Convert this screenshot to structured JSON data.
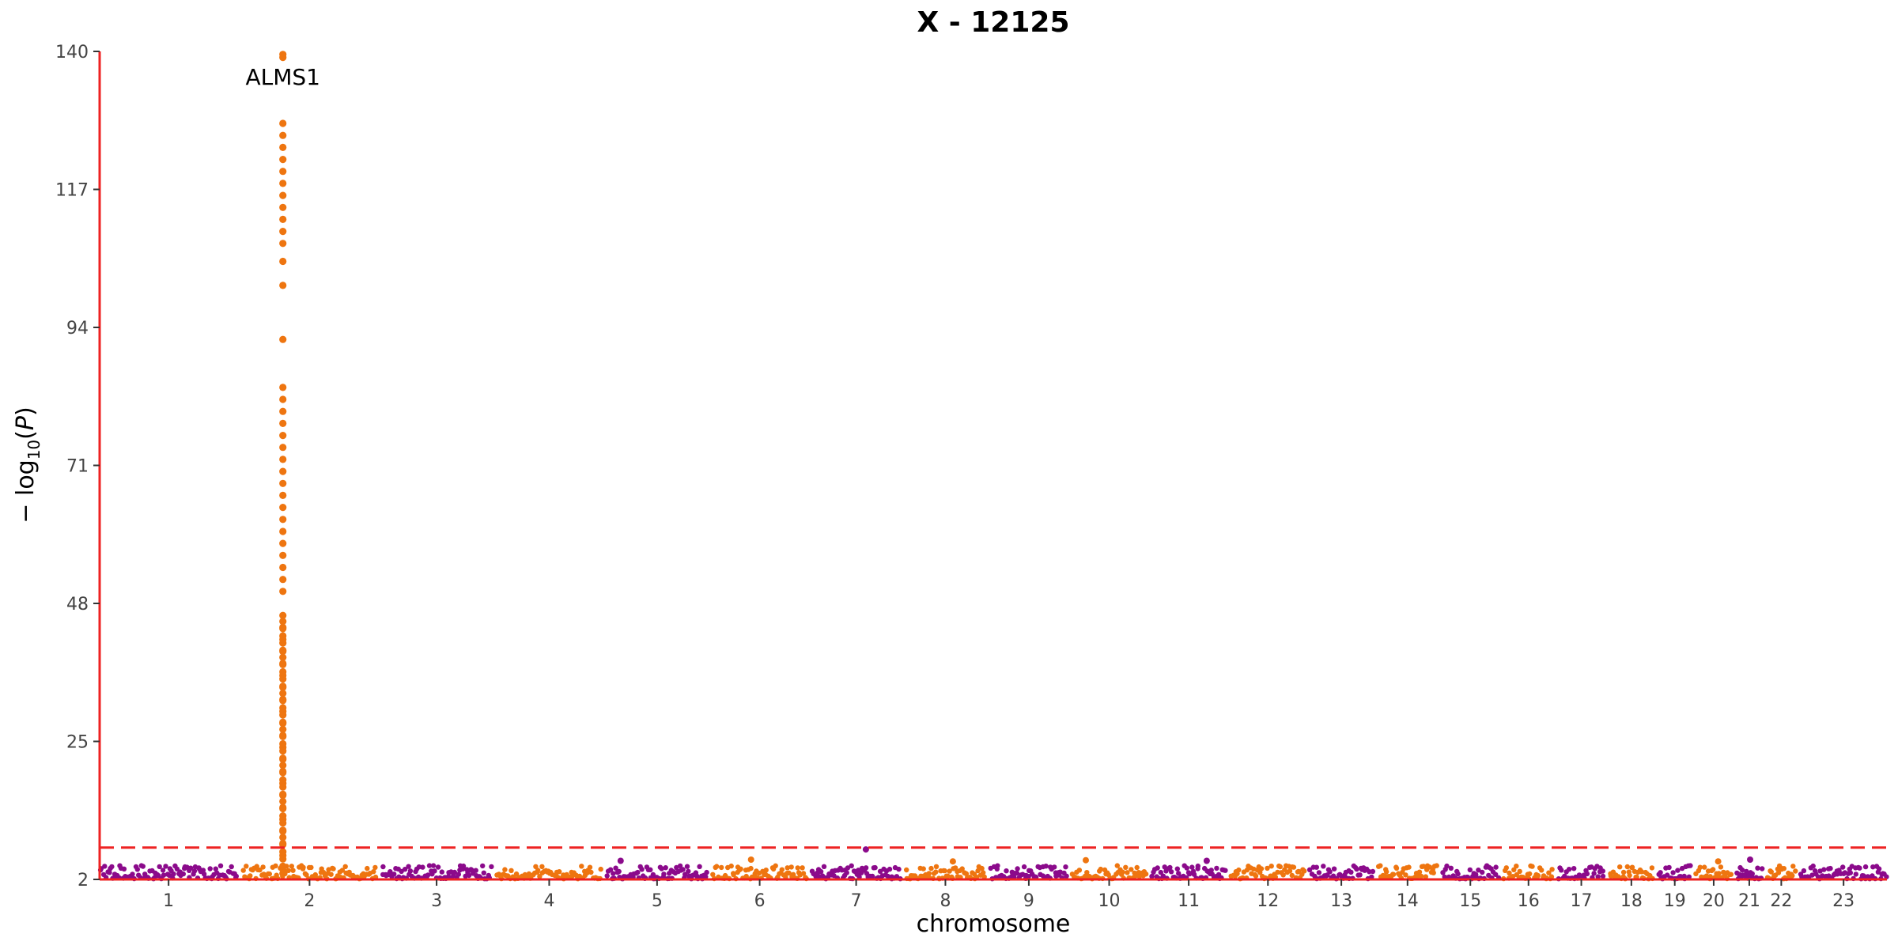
{
  "chart_data": {
    "type": "scatter",
    "title": "X - 12125",
    "xlabel": "chromosome",
    "ylabel": "−log10(P)",
    "ylim": [
      2,
      140
    ],
    "yticks": [
      2,
      25,
      48,
      71,
      94,
      117,
      140
    ],
    "significance_threshold": 7.3,
    "grid": false,
    "legend": "none",
    "colors": {
      "odd_chromosome": "#8B0A8B",
      "even_chromosome": "#EE7510",
      "threshold_line": "#EE2222",
      "axis": "#EE2222"
    },
    "chromosomes": [
      {
        "label": "1",
        "length": 248
      },
      {
        "label": "2",
        "length": 242
      },
      {
        "label": "3",
        "length": 198
      },
      {
        "label": "4",
        "length": 190
      },
      {
        "label": "5",
        "length": 181
      },
      {
        "label": "6",
        "length": 171
      },
      {
        "label": "7",
        "length": 159
      },
      {
        "label": "8",
        "length": 145
      },
      {
        "label": "9",
        "length": 138
      },
      {
        "label": "10",
        "length": 134
      },
      {
        "label": "11",
        "length": 135
      },
      {
        "label": "12",
        "length": 133
      },
      {
        "label": "13",
        "length": 114
      },
      {
        "label": "14",
        "length": 107
      },
      {
        "label": "15",
        "length": 102
      },
      {
        "label": "16",
        "length": 90
      },
      {
        "label": "17",
        "length": 83
      },
      {
        "label": "18",
        "length": 80
      },
      {
        "label": "19",
        "length": 59
      },
      {
        "label": "20",
        "length": 64
      },
      {
        "label": "21",
        "length": 47
      },
      {
        "label": "22",
        "length": 51
      },
      {
        "label": "23",
        "length": 156
      }
    ],
    "peak": {
      "chromosome": "2",
      "position": 73,
      "gene_label": "ALMS1",
      "top_value": 139.5,
      "values": [
        139.5,
        139,
        128,
        126,
        124,
        122,
        120,
        118,
        116,
        114,
        112,
        110,
        108,
        105,
        101,
        92,
        84,
        82,
        80,
        78,
        76,
        74,
        72,
        70,
        68,
        66,
        64,
        62,
        60,
        58,
        56,
        54,
        52,
        50,
        46,
        44,
        42,
        40,
        38,
        36,
        34,
        32,
        30,
        28,
        26,
        24,
        22,
        20,
        18,
        16,
        14,
        12,
        10,
        8,
        6,
        4
      ]
    },
    "notable_points": [
      {
        "chromosome": "5",
        "position": 25,
        "value": 5.1
      },
      {
        "chromosome": "6",
        "position": 70,
        "value": 5.3
      },
      {
        "chromosome": "7",
        "position": 97,
        "value": 7.0
      },
      {
        "chromosome": "8",
        "position": 86,
        "value": 5.0
      },
      {
        "chromosome": "10",
        "position": 25,
        "value": 5.2
      },
      {
        "chromosome": "11",
        "position": 100,
        "value": 5.1
      },
      {
        "chromosome": "20",
        "position": 40,
        "value": 5.0
      },
      {
        "chromosome": "21",
        "position": 25,
        "value": 5.3
      }
    ],
    "background_band": {
      "min": 2,
      "typical_max": 4.2
    }
  }
}
